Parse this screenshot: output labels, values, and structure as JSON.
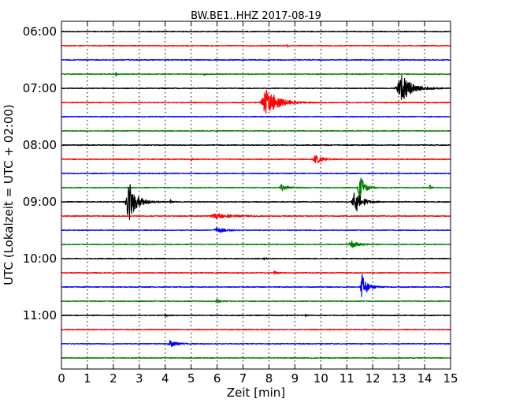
{
  "chart_data": {
    "type": "line",
    "title": "BW.BE1..HHZ 2017-08-19",
    "xlabel": "Zeit  [min]",
    "ylabel": "UTC (Lokalzeit = UTC + 02:00)",
    "xlim": [
      0,
      15
    ],
    "x_ticks": [
      "0",
      "1",
      "2",
      "3",
      "4",
      "5",
      "6",
      "7",
      "8",
      "9",
      "10",
      "11",
      "12",
      "13",
      "14",
      "15"
    ],
    "y_ticks": [
      {
        "label": "06:00",
        "trace": 0
      },
      {
        "label": "07:00",
        "trace": 4
      },
      {
        "label": "08:00",
        "trace": 8
      },
      {
        "label": "09:00",
        "trace": 12
      },
      {
        "label": "10:00",
        "trace": 16
      },
      {
        "label": "11:00",
        "trace": 20
      }
    ],
    "grid": true,
    "trace_interval_minutes": 15,
    "series_colors": [
      "#000000",
      "#ff0000",
      "#0000ff",
      "#008000"
    ],
    "traces": [
      {
        "start": "06:00",
        "events": []
      },
      {
        "start": "06:15",
        "events": [
          {
            "t": 8.7,
            "amp": 2,
            "dur": 0.1
          }
        ]
      },
      {
        "start": "06:30",
        "events": []
      },
      {
        "start": "06:45",
        "events": [
          {
            "t": 2.1,
            "amp": 5,
            "dur": 0.08
          },
          {
            "t": 5.5,
            "amp": 5,
            "dur": 0.08
          }
        ]
      },
      {
        "start": "07:00",
        "events": [
          {
            "t": 13.1,
            "amp": 17,
            "dur": 0.9
          }
        ]
      },
      {
        "start": "07:15",
        "events": [
          {
            "t": 7.9,
            "amp": 18,
            "dur": 0.9
          }
        ]
      },
      {
        "start": "07:30",
        "events": []
      },
      {
        "start": "07:45",
        "events": []
      },
      {
        "start": "08:00",
        "events": []
      },
      {
        "start": "08:15",
        "events": [
          {
            "t": 5.0,
            "amp": 2,
            "dur": 0.1
          },
          {
            "t": 9.8,
            "amp": 6,
            "dur": 0.5
          }
        ]
      },
      {
        "start": "08:30",
        "events": []
      },
      {
        "start": "08:45",
        "events": [
          {
            "t": 8.5,
            "amp": 4,
            "dur": 0.5
          },
          {
            "t": 11.5,
            "amp": 16,
            "dur": 0.4
          },
          {
            "t": 14.2,
            "amp": 4,
            "dur": 0.1
          }
        ]
      },
      {
        "start": "09:00",
        "events": [
          {
            "t": 2.6,
            "amp": 26,
            "dur": 0.6
          },
          {
            "t": 4.2,
            "amp": 3,
            "dur": 0.1
          },
          {
            "t": 11.3,
            "amp": 18,
            "dur": 0.5
          }
        ]
      },
      {
        "start": "09:15",
        "events": [
          {
            "t": 6.0,
            "amp": 3,
            "dur": 1.2
          }
        ]
      },
      {
        "start": "09:30",
        "events": [
          {
            "t": 6.0,
            "amp": 4,
            "dur": 0.6
          }
        ]
      },
      {
        "start": "09:45",
        "events": [
          {
            "t": 11.2,
            "amp": 4,
            "dur": 0.6
          }
        ]
      },
      {
        "start": "10:00",
        "events": [
          {
            "t": 7.8,
            "amp": 2,
            "dur": 0.2
          }
        ]
      },
      {
        "start": "10:15",
        "events": [
          {
            "t": 8.2,
            "amp": 2,
            "dur": 0.2
          }
        ]
      },
      {
        "start": "10:30",
        "events": [
          {
            "t": 11.6,
            "amp": 16,
            "dur": 0.4
          }
        ]
      },
      {
        "start": "10:45",
        "events": [
          {
            "t": 6.0,
            "amp": 2,
            "dur": 0.3
          }
        ]
      },
      {
        "start": "11:00",
        "events": [
          {
            "t": 4.0,
            "amp": 3,
            "dur": 0.1
          },
          {
            "t": 9.4,
            "amp": 2,
            "dur": 0.1
          }
        ]
      },
      {
        "start": "11:15",
        "events": []
      },
      {
        "start": "11:30",
        "events": [
          {
            "t": 4.2,
            "amp": 4,
            "dur": 0.5
          }
        ]
      },
      {
        "start": "11:45",
        "events": []
      }
    ]
  }
}
